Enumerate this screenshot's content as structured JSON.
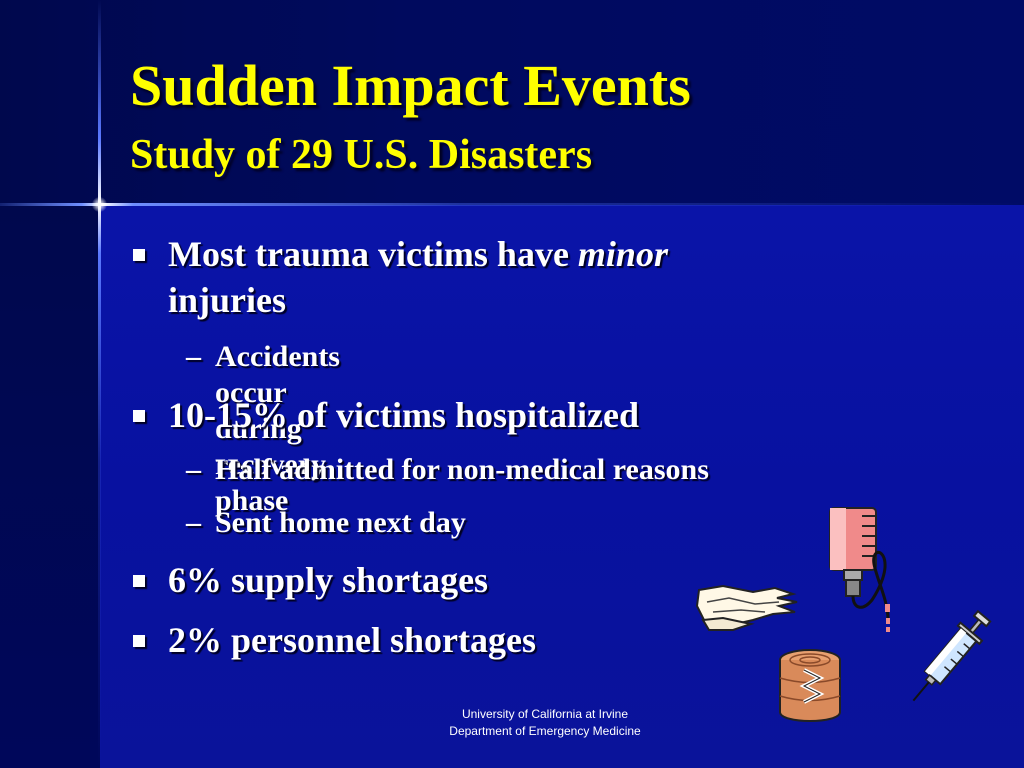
{
  "slide": {
    "title": "Sudden Impact Events",
    "subtitle": "Study of 29 U.S. Disasters"
  },
  "bullets": [
    {
      "text_before": "Most trauma victims have ",
      "text_emphasis": "minor",
      "text_line2": "injuries"
    },
    {
      "sub": "Accidents occur during recovery phase"
    },
    {
      "text": "10-15% of victims hospitalized"
    },
    {
      "sub": "Half admitted for non-medical reasons"
    },
    {
      "sub": "Sent home next day"
    },
    {
      "text": "6% supply shortages"
    },
    {
      "text": "2% personnel shortages"
    }
  ],
  "footer": {
    "line1": "University of California at Irvine",
    "line2": "Department of Emergency Medicine"
  },
  "dash_glyph": "–",
  "colors": {
    "background": "#000066",
    "content_panel": "#0a14a8",
    "title": "#ffff00",
    "text": "#ffffff"
  },
  "clipart": [
    "iv-bag-icon",
    "gloves-icon",
    "bandage-roll-icon",
    "syringe-icon"
  ]
}
